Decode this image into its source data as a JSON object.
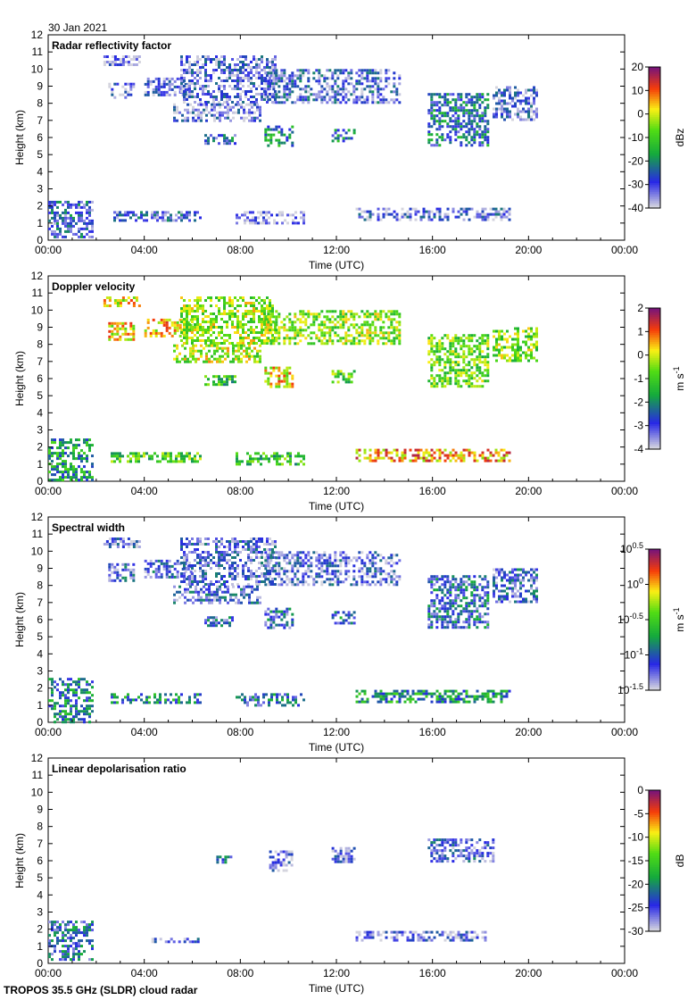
{
  "date_label": "30 Jan 2021",
  "footer_label": "TROPOS 35.5 GHz (SLDR) cloud radar",
  "shared_axes": {
    "xlabel": "Time (UTC)",
    "ylabel": "Height (km)",
    "x_ticks": [
      "00:00",
      "04:00",
      "08:00",
      "12:00",
      "16:00",
      "20:00",
      "00:00"
    ],
    "xlim_hours": [
      0,
      24
    ],
    "ylim_km": [
      0,
      12
    ],
    "y_ticks": [
      "0",
      "1",
      "2",
      "3",
      "4",
      "5",
      "6",
      "7",
      "8",
      "9",
      "10",
      "11",
      "12"
    ]
  },
  "chart_data": [
    {
      "type": "heatmap",
      "title": "Radar reflectivity factor",
      "xlabel": "Time (UTC)",
      "ylabel": "Height (km)",
      "xlim": [
        0,
        24
      ],
      "ylim": [
        0,
        12
      ],
      "colorbar": {
        "label": "dBz",
        "range": [
          -40,
          20
        ],
        "ticks": [
          "20",
          "10",
          "0",
          "-10",
          "-20",
          "-30",
          "-40"
        ],
        "colormap": "grey-blue-green-yellow-red-purple"
      },
      "regions": [
        {
          "t": [
            0.0,
            1.8
          ],
          "h": [
            0.2,
            2.3
          ],
          "v": -28
        },
        {
          "t": [
            2.5,
            3.6
          ],
          "h": [
            8.3,
            9.2
          ],
          "v": -34
        },
        {
          "t": [
            2.3,
            3.8
          ],
          "h": [
            10.3,
            10.8
          ],
          "v": -36
        },
        {
          "t": [
            4.0,
            6.0
          ],
          "h": [
            8.5,
            9.5
          ],
          "v": -34
        },
        {
          "t": [
            5.5,
            9.5
          ],
          "h": [
            8.0,
            10.8
          ],
          "v": -32
        },
        {
          "t": [
            5.2,
            8.8
          ],
          "h": [
            7.0,
            8.0
          ],
          "v": -33
        },
        {
          "t": [
            9.0,
            14.6
          ],
          "h": [
            8.0,
            10.0
          ],
          "v": -30
        },
        {
          "t": [
            6.5,
            7.8
          ],
          "h": [
            5.6,
            6.2
          ],
          "v": -26
        },
        {
          "t": [
            9.0,
            10.2
          ],
          "h": [
            5.5,
            6.7
          ],
          "v": -20
        },
        {
          "t": [
            11.8,
            12.8
          ],
          "h": [
            5.8,
            6.5
          ],
          "v": -22
        },
        {
          "t": [
            15.8,
            18.3
          ],
          "h": [
            5.5,
            8.6
          ],
          "v": -24
        },
        {
          "t": [
            18.5,
            20.3
          ],
          "h": [
            7.0,
            9.0
          ],
          "v": -32
        },
        {
          "t": [
            2.6,
            6.3
          ],
          "h": [
            1.1,
            1.7
          ],
          "v": -30
        },
        {
          "t": [
            7.8,
            10.6
          ],
          "h": [
            1.0,
            1.7
          ],
          "v": -38
        },
        {
          "t": [
            12.8,
            19.2
          ],
          "h": [
            1.2,
            1.9
          ],
          "v": -32
        }
      ]
    },
    {
      "type": "heatmap",
      "title": "Doppler velocity",
      "xlabel": "Time (UTC)",
      "ylabel": "Height (km)",
      "xlim": [
        0,
        24
      ],
      "ylim": [
        0,
        12
      ],
      "colorbar": {
        "label": "m s-1",
        "range": [
          -4,
          2
        ],
        "ticks": [
          "2",
          "1",
          "0",
          "-1",
          "-2",
          "-3",
          "-4"
        ],
        "colormap": "grey-blue-green-yellow-red-purple"
      },
      "regions": [
        {
          "t": [
            0.0,
            1.8
          ],
          "h": [
            0.0,
            2.5
          ],
          "v": -1.8
        },
        {
          "t": [
            2.5,
            3.6
          ],
          "h": [
            8.3,
            9.3
          ],
          "v": 0.2
        },
        {
          "t": [
            2.3,
            3.8
          ],
          "h": [
            10.3,
            10.8
          ],
          "v": 0.1
        },
        {
          "t": [
            4.0,
            6.0
          ],
          "h": [
            8.5,
            9.5
          ],
          "v": 0.3
        },
        {
          "t": [
            5.5,
            9.5
          ],
          "h": [
            8.0,
            10.8
          ],
          "v": -0.4
        },
        {
          "t": [
            5.2,
            8.8
          ],
          "h": [
            7.0,
            8.0
          ],
          "v": -0.3
        },
        {
          "t": [
            9.0,
            14.6
          ],
          "h": [
            8.0,
            10.0
          ],
          "v": -0.5
        },
        {
          "t": [
            6.5,
            7.8
          ],
          "h": [
            5.6,
            6.2
          ],
          "v": -1.3
        },
        {
          "t": [
            9.0,
            10.2
          ],
          "h": [
            5.5,
            6.7
          ],
          "v": 0.2
        },
        {
          "t": [
            11.8,
            12.8
          ],
          "h": [
            5.8,
            6.5
          ],
          "v": -0.9
        },
        {
          "t": [
            15.8,
            18.3
          ],
          "h": [
            5.5,
            8.6
          ],
          "v": -0.7
        },
        {
          "t": [
            18.5,
            20.3
          ],
          "h": [
            7.0,
            9.0
          ],
          "v": -0.6
        },
        {
          "t": [
            2.6,
            6.3
          ],
          "h": [
            1.1,
            1.7
          ],
          "v": -1.0
        },
        {
          "t": [
            7.8,
            10.6
          ],
          "h": [
            1.0,
            1.7
          ],
          "v": -1.2
        },
        {
          "t": [
            12.8,
            19.2
          ],
          "h": [
            1.2,
            1.9
          ],
          "v": 0.6
        }
      ]
    },
    {
      "type": "heatmap",
      "title": "Spectral width",
      "xlabel": "Time (UTC)",
      "ylabel": "Height (km)",
      "xlim": [
        0,
        24
      ],
      "ylim": [
        0,
        12
      ],
      "colorbar": {
        "label": "m s-1",
        "range": [
          -1.5,
          0.5
        ],
        "ticks": [
          "10^0.5",
          "10^0",
          "10^-0.5",
          "10^-1",
          "10^-1.5"
        ],
        "scale": "log10",
        "colormap": "grey-blue-green-yellow-red-purple"
      },
      "regions": [
        {
          "t": [
            0.0,
            1.8
          ],
          "h": [
            0.0,
            2.6
          ],
          "v": -0.9
        },
        {
          "t": [
            2.5,
            3.6
          ],
          "h": [
            8.3,
            9.3
          ],
          "v": -1.15
        },
        {
          "t": [
            2.3,
            3.8
          ],
          "h": [
            10.3,
            10.8
          ],
          "v": -1.25
        },
        {
          "t": [
            4.0,
            6.0
          ],
          "h": [
            8.5,
            9.5
          ],
          "v": -1.15
        },
        {
          "t": [
            5.5,
            9.5
          ],
          "h": [
            8.0,
            10.8
          ],
          "v": -1.2
        },
        {
          "t": [
            5.2,
            8.8
          ],
          "h": [
            7.0,
            8.0
          ],
          "v": -1.15
        },
        {
          "t": [
            9.0,
            14.6
          ],
          "h": [
            8.0,
            10.0
          ],
          "v": -1.2
        },
        {
          "t": [
            6.5,
            7.8
          ],
          "h": [
            5.6,
            6.2
          ],
          "v": -1.1
        },
        {
          "t": [
            9.0,
            10.2
          ],
          "h": [
            5.5,
            6.7
          ],
          "v": -1.1
        },
        {
          "t": [
            11.8,
            12.8
          ],
          "h": [
            5.8,
            6.5
          ],
          "v": -1.0
        },
        {
          "t": [
            15.8,
            18.3
          ],
          "h": [
            5.5,
            8.6
          ],
          "v": -1.05
        },
        {
          "t": [
            18.5,
            20.3
          ],
          "h": [
            7.0,
            9.0
          ],
          "v": -1.15
        },
        {
          "t": [
            2.6,
            6.3
          ],
          "h": [
            1.1,
            1.7
          ],
          "v": -0.85
        },
        {
          "t": [
            7.8,
            10.6
          ],
          "h": [
            1.0,
            1.7
          ],
          "v": -1.0
        },
        {
          "t": [
            12.8,
            19.2
          ],
          "h": [
            1.2,
            1.9
          ],
          "v": -0.8
        }
      ]
    },
    {
      "type": "heatmap",
      "title": "Linear depolarisation ratio",
      "xlabel": "Time (UTC)",
      "ylabel": "Height (km)",
      "xlim": [
        0,
        24
      ],
      "ylim": [
        0,
        12
      ],
      "colorbar": {
        "label": "dB",
        "range": [
          -30,
          0
        ],
        "ticks": [
          "0",
          "-5",
          "-10",
          "-15",
          "-20",
          "-25",
          "-30"
        ],
        "colormap": "grey-blue-green-yellow-red-purple"
      },
      "regions": [
        {
          "t": [
            0.0,
            1.8
          ],
          "h": [
            0.2,
            2.5
          ],
          "v": -23
        },
        {
          "t": [
            7.0,
            7.6
          ],
          "h": [
            5.9,
            6.3
          ],
          "v": -24
        },
        {
          "t": [
            9.2,
            10.2
          ],
          "h": [
            5.5,
            6.6
          ],
          "v": -26
        },
        {
          "t": [
            11.8,
            12.8
          ],
          "h": [
            5.9,
            6.8
          ],
          "v": -26
        },
        {
          "t": [
            15.8,
            18.5
          ],
          "h": [
            5.9,
            7.3
          ],
          "v": -25
        },
        {
          "t": [
            4.3,
            6.2
          ],
          "h": [
            1.2,
            1.5
          ],
          "v": -26
        },
        {
          "t": [
            12.8,
            18.2
          ],
          "h": [
            1.3,
            1.9
          ],
          "v": -27
        }
      ]
    }
  ]
}
